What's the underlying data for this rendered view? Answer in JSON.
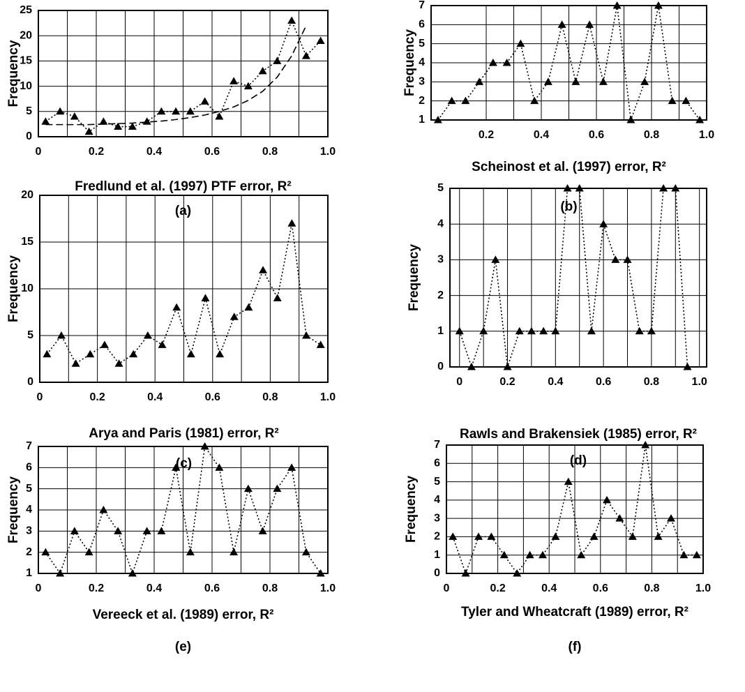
{
  "chart_data": [
    {
      "type": "line",
      "xlabel": "Fredlund et al. (1997) PTF error, R²",
      "ylabel": "Frequency",
      "panel_label": "(a)",
      "x": [
        0.025,
        0.075,
        0.125,
        0.175,
        0.225,
        0.275,
        0.325,
        0.375,
        0.425,
        0.475,
        0.525,
        0.575,
        0.625,
        0.675,
        0.725,
        0.775,
        0.825,
        0.875,
        0.925,
        0.975
      ],
      "xlim": [
        0,
        1
      ],
      "ylim": [
        0,
        25
      ],
      "xticks": [
        0,
        0.2,
        0.4,
        0.6,
        0.8,
        {
          "value": 1,
          "label": "1.0"
        }
      ],
      "yticks": [
        0,
        5,
        10,
        15,
        20,
        25
      ],
      "grid": true,
      "series": [
        {
          "color": "#000000",
          "marker": "triangle",
          "style": "dotted",
          "values": [
            3,
            5,
            4,
            1,
            3,
            2,
            2,
            3,
            5,
            5,
            5,
            7,
            4,
            11,
            10,
            13,
            15,
            23,
            16,
            19
          ]
        },
        {
          "color": "#000000",
          "marker": "none",
          "style": "dashed",
          "values": [
            2.4,
            2.4,
            2.4,
            2.4,
            2.5,
            2.6,
            2.7,
            2.9,
            3.1,
            3.4,
            3.8,
            4.3,
            5,
            5.9,
            7.2,
            9,
            11.8,
            16,
            22,
            null
          ]
        }
      ]
    },
    {
      "type": "line",
      "xlabel": "Scheinost et al. (1997) error, R²",
      "ylabel": "Frequency",
      "panel_label": "(b)",
      "x": [
        0.025,
        0.075,
        0.125,
        0.175,
        0.225,
        0.275,
        0.325,
        0.375,
        0.425,
        0.475,
        0.525,
        0.575,
        0.625,
        0.675,
        0.725,
        0.775,
        0.825,
        0.875,
        0.925,
        0.975
      ],
      "xlim": [
        0,
        1
      ],
      "ylim": [
        1,
        7
      ],
      "xticks": [
        0.2,
        0.4,
        0.6,
        0.8,
        {
          "value": 1,
          "label": "1.0"
        }
      ],
      "yticks": [
        1,
        2,
        3,
        4,
        5,
        6,
        7
      ],
      "grid": true,
      "series": [
        {
          "color": "#000000",
          "marker": "triangle",
          "style": "dotted",
          "values": [
            1,
            2,
            2,
            3,
            4,
            4,
            5,
            2,
            3,
            6,
            3,
            6,
            3,
            7,
            1,
            3,
            7,
            2,
            2,
            1
          ]
        }
      ]
    },
    {
      "type": "line",
      "xlabel": "Arya and Paris (1981) error, R²",
      "ylabel": "Frequency",
      "panel_label": "(c)",
      "x": [
        0.025,
        0.075,
        0.125,
        0.175,
        0.225,
        0.275,
        0.325,
        0.375,
        0.425,
        0.475,
        0.525,
        0.575,
        0.625,
        0.675,
        0.725,
        0.775,
        0.825,
        0.875,
        0.925,
        0.975
      ],
      "xlim": [
        0,
        1
      ],
      "ylim": [
        0,
        20
      ],
      "xticks": [
        0,
        0.2,
        0.4,
        0.6,
        0.8,
        {
          "value": 1,
          "label": "1.0"
        }
      ],
      "yticks": [
        0,
        5,
        10,
        15,
        20
      ],
      "grid": true,
      "series": [
        {
          "color": "#000000",
          "marker": "triangle",
          "style": "dotted",
          "values": [
            3,
            5,
            2,
            3,
            4,
            2,
            3,
            5,
            4,
            8,
            3,
            9,
            3,
            7,
            8,
            12,
            9,
            17,
            5,
            4
          ]
        }
      ]
    },
    {
      "type": "line",
      "xlabel": "Rawls and Brakensiek (1985) error, R²",
      "ylabel": "Frequency",
      "panel_label": "(d)",
      "x": [
        0,
        0.05,
        0.1,
        0.15,
        0.2,
        0.25,
        0.3,
        0.35,
        0.4,
        0.45,
        0.5,
        0.55,
        0.6,
        0.65,
        0.7,
        0.75,
        0.8,
        0.85,
        0.9,
        0.95
      ],
      "xlim": [
        -0.04,
        1.03
      ],
      "ylim": [
        0,
        5
      ],
      "xticks": [
        0,
        0.2,
        0.4,
        0.6,
        0.8,
        {
          "value": 1,
          "label": "1.0"
        }
      ],
      "yticks": [
        0,
        1,
        2,
        3,
        4,
        5
      ],
      "grid": true,
      "series": [
        {
          "color": "#000000",
          "marker": "triangle",
          "style": "dotted",
          "values": [
            1,
            0,
            1,
            3,
            0,
            1,
            1,
            1,
            1,
            5,
            5,
            1,
            4,
            3,
            3,
            1,
            1,
            5,
            5,
            0
          ]
        }
      ]
    },
    {
      "type": "line",
      "xlabel": "Vereeck et al. (1989) error, R²",
      "ylabel": "Frequency",
      "panel_label": "(e)",
      "x": [
        0.025,
        0.075,
        0.125,
        0.175,
        0.225,
        0.275,
        0.325,
        0.375,
        0.425,
        0.475,
        0.525,
        0.575,
        0.625,
        0.675,
        0.725,
        0.775,
        0.825,
        0.875,
        0.925,
        0.975
      ],
      "xlim": [
        0,
        1
      ],
      "ylim": [
        1,
        7
      ],
      "xticks": [
        0,
        0.2,
        0.4,
        0.6,
        0.8,
        {
          "value": 1,
          "label": "1.0"
        }
      ],
      "yticks": [
        1,
        2,
        3,
        4,
        5,
        6,
        7
      ],
      "grid": true,
      "series": [
        {
          "color": "#000000",
          "marker": "triangle",
          "style": "dotted",
          "values": [
            2,
            1,
            3,
            2,
            4,
            3,
            1,
            3,
            3,
            6,
            2,
            7,
            6,
            2,
            5,
            3,
            5,
            6,
            2,
            1
          ]
        }
      ]
    },
    {
      "type": "line",
      "xlabel": "Tyler and Wheatcraft (1989) error, R²",
      "ylabel": "Frequency",
      "panel_label": "(f)",
      "x": [
        0.025,
        0.075,
        0.125,
        0.175,
        0.225,
        0.275,
        0.325,
        0.375,
        0.425,
        0.475,
        0.525,
        0.575,
        0.625,
        0.675,
        0.725,
        0.775,
        0.825,
        0.875,
        0.925,
        0.975
      ],
      "xlim": [
        0,
        1
      ],
      "ylim": [
        0,
        7
      ],
      "xticks": [
        0,
        0.2,
        0.4,
        0.6,
        0.8,
        {
          "value": 1,
          "label": "1.0"
        }
      ],
      "yticks": [
        0,
        1,
        2,
        3,
        4,
        5,
        6,
        7
      ],
      "grid": true,
      "series": [
        {
          "color": "#000000",
          "marker": "triangle",
          "style": "dotted",
          "values": [
            2,
            0,
            2,
            2,
            1,
            0,
            1,
            1,
            2,
            5,
            1,
            2,
            4,
            3,
            2,
            7,
            2,
            3,
            1,
            1
          ]
        }
      ]
    }
  ]
}
